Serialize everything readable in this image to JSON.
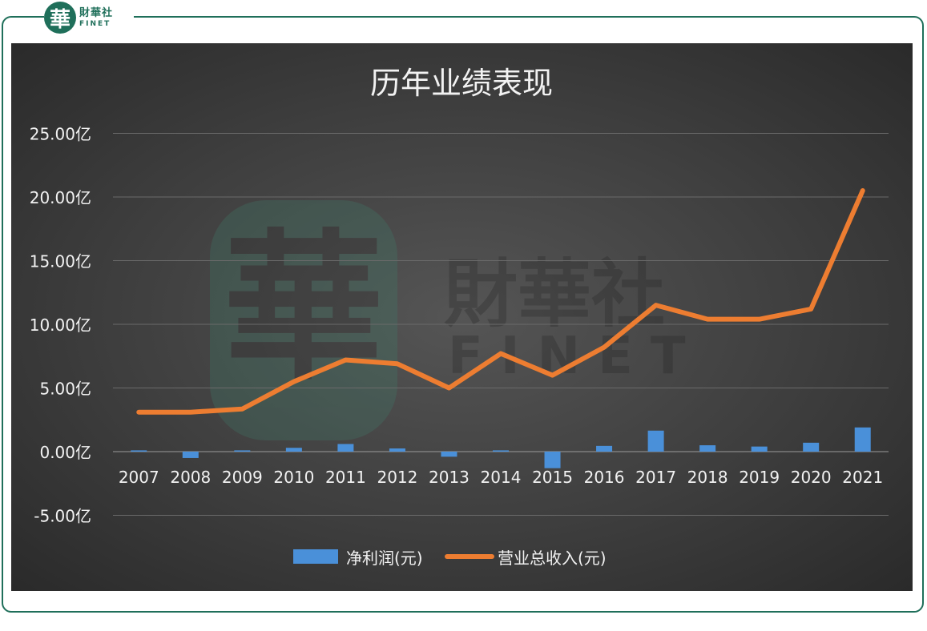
{
  "brand": {
    "seal_char": "華",
    "name_cn": "財華社",
    "name_en": "FINET"
  },
  "watermark": {
    "seal_char": "華",
    "name_cn": "財華社",
    "name_en": "FINET"
  },
  "colors": {
    "net_profit": "#4a90d9",
    "revenue": "#ed7d31",
    "frame": "#1f6f5a",
    "gridline": "#6a6a6a",
    "text": "#f2f2f2"
  },
  "chart_data": {
    "type": "bar",
    "title": "历年业绩表现",
    "xlabel": "",
    "ylabel": "",
    "categories": [
      "2007",
      "2008",
      "2009",
      "2010",
      "2011",
      "2012",
      "2013",
      "2014",
      "2015",
      "2016",
      "2017",
      "2018",
      "2019",
      "2020",
      "2021"
    ],
    "y_ticks": [
      "-5.00亿",
      "0.00亿",
      "5.00亿",
      "10.00亿",
      "15.00亿",
      "20.00亿",
      "25.00亿"
    ],
    "y_tick_values": [
      -5,
      0,
      5,
      10,
      15,
      20,
      25
    ],
    "ylim": [
      -5,
      25
    ],
    "unit": "亿",
    "grid": true,
    "legend_position": "bottom",
    "series": [
      {
        "name": "净利润(元)",
        "type": "bar",
        "values": [
          0.1,
          -0.5,
          0.1,
          0.3,
          0.6,
          0.25,
          -0.4,
          0.1,
          -1.3,
          0.45,
          1.65,
          0.5,
          0.4,
          0.7,
          1.9
        ]
      },
      {
        "name": "营业总收入(元)",
        "type": "line",
        "values": [
          3.1,
          3.1,
          3.35,
          5.5,
          7.2,
          6.9,
          5.0,
          7.7,
          6.0,
          8.2,
          11.5,
          10.4,
          10.4,
          11.2,
          20.5
        ]
      }
    ]
  }
}
